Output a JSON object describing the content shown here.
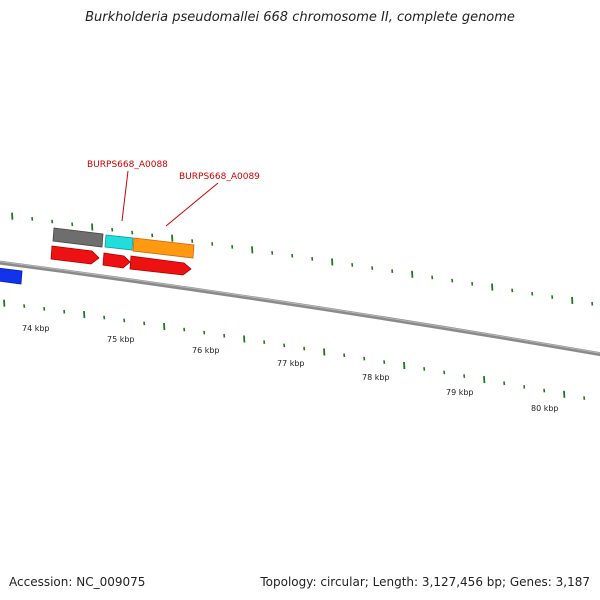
{
  "title": "Burkholderia pseudomallei 668 chromosome II, complete genome",
  "footer": {
    "accession": "Accession: NC_009075",
    "stats": "Topology: circular; Length: 3,127,456 bp; Genes: 3,187"
  },
  "scale": {
    "labels": [
      "74 kbp",
      "75 kbp",
      "76 kbp",
      "77 kbp",
      "78 kbp",
      "79 kbp",
      "80 kbp"
    ]
  },
  "gene_labels": [
    "BURPS668_A0088",
    "BURPS668_A0089"
  ],
  "colors": {
    "backbone": "#8a8a8a",
    "tick": "#1a7a1a",
    "gene_label": "#cc0000",
    "forward_gene": "#ee1111",
    "gray_feature": "#6e6e6e",
    "cyan_feature": "#22dddd",
    "orange_feature": "#ff9911",
    "blue_feature": "#1133ee"
  }
}
